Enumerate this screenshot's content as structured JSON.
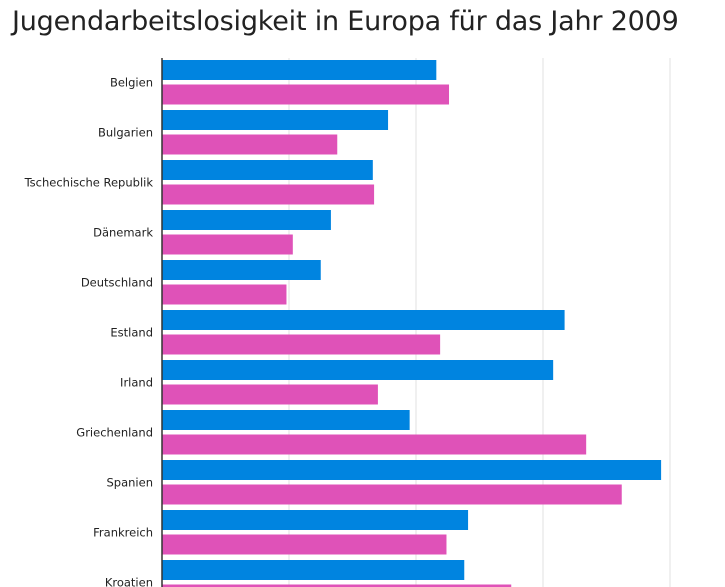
{
  "chart_data": {
    "type": "bar",
    "orientation": "horizontal",
    "title": "Jugendarbeitslosigkeit in Europa für das Jahr 2009",
    "xlabel": "",
    "ylabel": "",
    "xlim": [
      0,
      40
    ],
    "grid": true,
    "legend": "none",
    "categories": [
      "Belgien",
      "Bulgarien",
      "Tschechische Republik",
      "Dänemark",
      "Deutschland",
      "Estland",
      "Irland",
      "Griechenland",
      "Spanien",
      "Frankreich",
      "Kroatien"
    ],
    "series": [
      {
        "color": "#0084e0",
        "values": [
          21.6,
          17.8,
          16.6,
          13.3,
          12.5,
          31.7,
          30.8,
          19.5,
          39.3,
          24.1,
          23.8
        ]
      },
      {
        "color": "#df52b8",
        "values": [
          22.6,
          13.8,
          16.7,
          10.3,
          9.8,
          21.9,
          17.0,
          33.4,
          36.2,
          22.4,
          27.5
        ]
      }
    ]
  }
}
